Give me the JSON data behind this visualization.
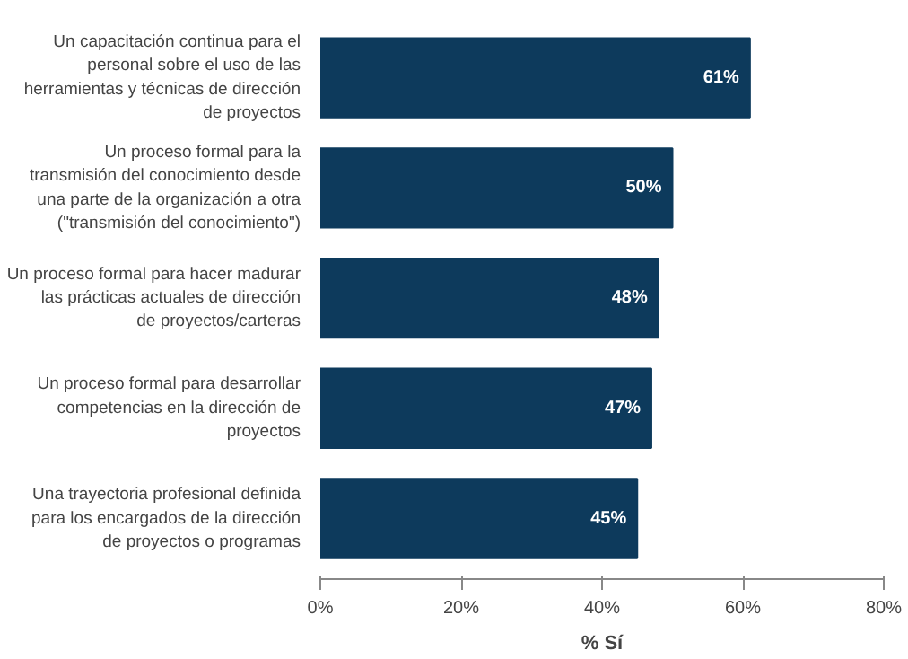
{
  "chart_data": {
    "type": "bar",
    "orientation": "horizontal",
    "xlabel": "% Sí",
    "categories": [
      "Un capacitación continua para el personal sobre el uso de las herramientas y técnicas de dirección de proyectos",
      "Un proceso formal para la transmisión del conocimiento desde una parte de la organización a otra (\"transmisión del conocimiento\")",
      "Un proceso formal para hacer madurar las prácticas actuales de dirección de proyectos/carteras",
      "Un proceso formal para desarrollar competencias en la dirección de proyectos",
      "Una trayectoria profesional definida para los encargados de la dirección de proyectos o programas"
    ],
    "values": [
      61,
      50,
      48,
      47,
      45
    ],
    "value_labels": [
      "61%",
      "50%",
      "48%",
      "47%",
      "45%"
    ],
    "color": "#0d3a5c",
    "xlim": [
      0,
      80
    ],
    "xticks": [
      {
        "value": 0,
        "label": "0%"
      },
      {
        "value": 20,
        "label": "20%"
      },
      {
        "value": 40,
        "label": "40%"
      },
      {
        "value": 60,
        "label": "60%"
      },
      {
        "value": 80,
        "label": "80%"
      }
    ],
    "grid": false
  }
}
